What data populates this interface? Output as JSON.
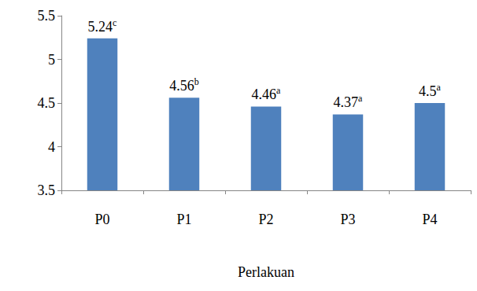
{
  "chart_data": {
    "type": "bar",
    "x_label": "Perlakuan",
    "categories": [
      "P0",
      "P1",
      "P2",
      "P3",
      "P4"
    ],
    "values": [
      5.24,
      4.56,
      4.46,
      4.37,
      4.5
    ],
    "annotations": [
      "c",
      "b",
      "a",
      "a",
      "a"
    ],
    "color": "#4f81bd",
    "ylim": [
      3.5,
      5.5
    ],
    "yticks": [
      3.5,
      4,
      4.5,
      5,
      5.5
    ],
    "grid": false,
    "data_labels": true
  }
}
